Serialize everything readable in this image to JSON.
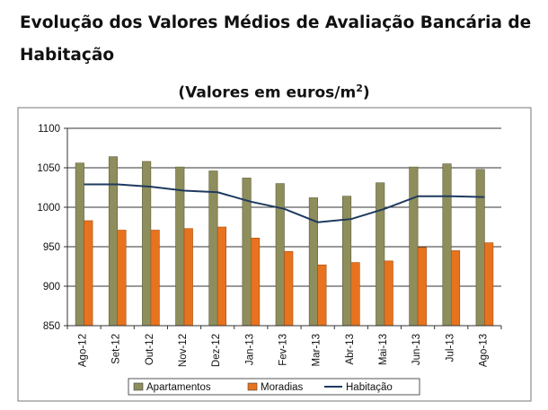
{
  "heading": {
    "line1": "Evolução dos Valores Médios de Avaliação Bancária de",
    "line2": "Habitação"
  },
  "chart_data": {
    "type": "bar",
    "title": "(Valores em euros/m",
    "title_superscript": "2",
    "title_close": ")",
    "categories": [
      "Ago-12",
      "Set-12",
      "Out-12",
      "Nov-12",
      "Dez-12",
      "Jan-13",
      "Fev-13",
      "Mar-13",
      "Abr-13",
      "Mai-13",
      "Jun-13",
      "Jul-13",
      "Ago-13"
    ],
    "series": [
      {
        "name": "Apartamentos",
        "kind": "bar",
        "color": "#8E8E5C",
        "values": [
          1056,
          1064,
          1058,
          1051,
          1046,
          1037,
          1030,
          1012,
          1014,
          1031,
          1051,
          1055,
          1048
        ]
      },
      {
        "name": "Moradias",
        "kind": "bar",
        "color": "#E8731E",
        "values": [
          983,
          971,
          971,
          973,
          975,
          961,
          944,
          927,
          930,
          932,
          949,
          945,
          955
        ]
      },
      {
        "name": "Habitação",
        "kind": "line",
        "color": "#1F3A5F",
        "values": [
          1029,
          1029,
          1026,
          1021,
          1019,
          1007,
          998,
          981,
          985,
          998,
          1014,
          1014,
          1013
        ]
      }
    ],
    "ylim": [
      850,
      1100
    ],
    "yticks": [
      "850",
      "900",
      "950",
      "1000",
      "1050",
      "1100"
    ],
    "ytick_values": [
      850,
      900,
      950,
      1000,
      1050,
      1100
    ],
    "grid": true,
    "legend_position": "bottom"
  }
}
